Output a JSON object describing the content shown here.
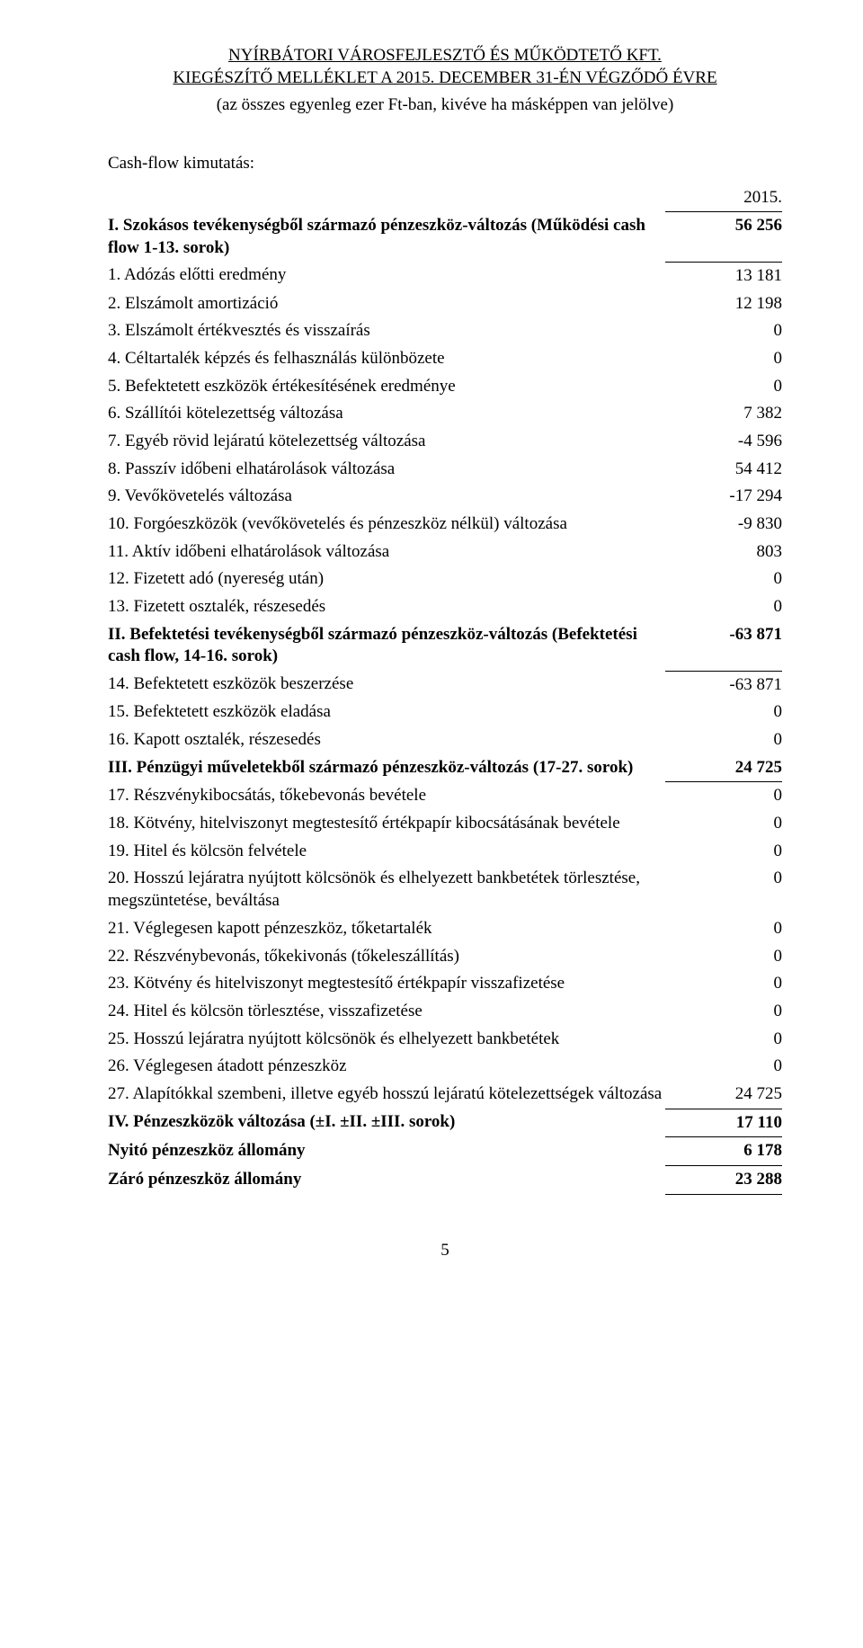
{
  "header": {
    "title1": "NYÍRBÁTORI VÁROSFEJLESZTŐ ÉS MŰKÖDTETŐ KFT.",
    "title2": "KIEGÉSZÍTŐ MELLÉKLET A 2015. DECEMBER 31-ÉN VÉGZŐDŐ ÉVRE",
    "subtitle": "(az összes egyenleg ezer Ft-ban, kivéve ha másképpen van jelölve)"
  },
  "section_label": "Cash-flow kimutatás:",
  "year": "2015.",
  "rows": [
    {
      "label": "I. Szokásos tevékenységből származó pénzeszköz-változás (Működési cash flow 1-13. sorok)",
      "value": "56 256",
      "bold": true,
      "bt": true,
      "bb": true,
      "indent": 0
    },
    {
      "label": "1. Adózás előtti eredmény",
      "value": "13 181",
      "indent": 1
    },
    {
      "label": "2. Elszámolt amortizáció",
      "value": "12 198",
      "indent": 1
    },
    {
      "label": "3. Elszámolt értékvesztés és visszaírás",
      "value": "0",
      "indent": 1
    },
    {
      "label": "4. Céltartalék képzés és felhasználás különbözete",
      "value": "0",
      "indent": 1
    },
    {
      "label": "5. Befektetett eszközök értékesítésének eredménye",
      "value": "0",
      "indent": 1
    },
    {
      "label": "6. Szállítói kötelezettség változása",
      "value": "7 382",
      "indent": 1
    },
    {
      "label": "7. Egyéb rövid lejáratú kötelezettség változása",
      "value": "-4 596",
      "indent": 1
    },
    {
      "label": "8. Passzív időbeni elhatárolások változása",
      "value": "54 412",
      "indent": 1
    },
    {
      "label": "9. Vevőkövetelés változása",
      "value": "-17 294",
      "indent": 1
    },
    {
      "label": "10. Forgóeszközök (vevőkövetelés és pénzeszköz nélkül) változása",
      "value": "-9 830",
      "indent": 1
    },
    {
      "label": "11. Aktív időbeni elhatárolások változása",
      "value": "803",
      "indent": 1
    },
    {
      "label": "12. Fizetett adó (nyereség után)",
      "value": "0",
      "indent": 1
    },
    {
      "label": "13. Fizetett osztalék, részesedés",
      "value": "0",
      "indent": 1
    },
    {
      "label": "II. Befektetési tevékenységből származó pénzeszköz-változás (Befektetési cash flow, 14-16. sorok)",
      "value": "-63 871",
      "bold": true,
      "bb": true,
      "indent": 0
    },
    {
      "label": "14. Befektetett eszközök beszerzése",
      "value": "-63 871",
      "indent": 1,
      "bt": true
    },
    {
      "label": "15. Befektetett eszközök eladása",
      "value": "0",
      "indent": 1
    },
    {
      "label": "16. Kapott osztalék, részesedés",
      "value": "0",
      "indent": 1
    },
    {
      "label": "III. Pénzügyi műveletekből származó pénzeszköz-változás (17-27. sorok)",
      "value": "24 725",
      "bold": true,
      "bb": true,
      "indent": 0
    },
    {
      "label": "17. Részvénykibocsátás, tőkebevonás bevétele",
      "value": "0",
      "indent": 1,
      "bt": true
    },
    {
      "label": "18. Kötvény, hitelviszonyt megtestesítő értékpapír kibocsátásának bevétele",
      "value": "0",
      "indent": 1
    },
    {
      "label": "19. Hitel és kölcsön felvétele",
      "value": "0",
      "indent": 1
    },
    {
      "label": "20. Hosszú lejáratra nyújtott kölcsönök és elhelyezett bankbetétek törlesztése, megszüntetése, beváltása",
      "value": "0",
      "indent": 1
    },
    {
      "label": "21. Véglegesen kapott pénzeszköz, tőketartalék",
      "value": "0",
      "indent": 1
    },
    {
      "label": "22. Részvénybevonás, tőkekivonás (tőkeleszállítás)",
      "value": "0",
      "indent": 1
    },
    {
      "label": "23. Kötvény és hitelviszonyt megtestesítő értékpapír visszafizetése",
      "value": "0",
      "indent": 1
    },
    {
      "label": "24. Hitel és kölcsön törlesztése, visszafizetése",
      "value": "0",
      "indent": 1
    },
    {
      "label": "25. Hosszú lejáratra nyújtott kölcsönök és elhelyezett bankbetétek",
      "value": "0",
      "indent": 1
    },
    {
      "label": "26. Véglegesen átadott pénzeszköz",
      "value": "0",
      "indent": 1
    },
    {
      "label": "27. Alapítókkal szembeni, illetve egyéb hosszú lejáratú kötelezettségek változása",
      "value": "24 725",
      "indent": 1
    },
    {
      "label": "IV. Pénzeszközök változása (±I. ±II. ±III. sorok)",
      "value": "17 110",
      "bold": true,
      "bt": true,
      "bb": true,
      "indent": 0
    },
    {
      "label": "Nyitó pénzeszköz állomány",
      "value": "6 178",
      "bold": true,
      "bt": true,
      "bb": true,
      "indent": 0
    },
    {
      "label": "Záró pénzeszköz állomány",
      "value": "23 288",
      "bold": true,
      "bt": true,
      "bb": true,
      "indent": 0
    }
  ],
  "page_number": "5"
}
